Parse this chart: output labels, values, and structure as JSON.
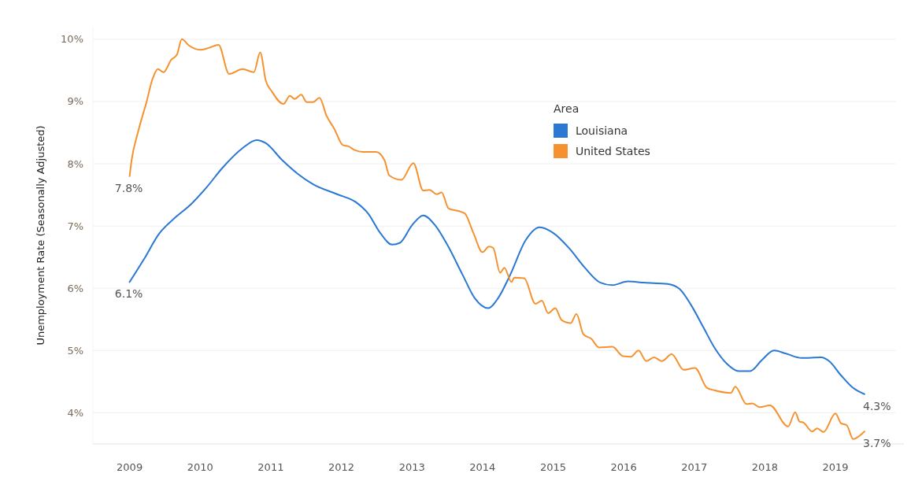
{
  "chart_data": {
    "type": "line",
    "ylabel": "Unemployment Rate (Seasonally Adjusted)",
    "legend_title": "Area",
    "legend": "top right",
    "grid": "y",
    "marker": "none",
    "xlim": [
      2008.48,
      2019.97
    ],
    "xticks": [
      2009,
      2010,
      2011,
      2012,
      2013,
      2014,
      2015,
      2016,
      2017,
      2018,
      2019
    ],
    "ylim": [
      3.5,
      10.2
    ],
    "yticks": [
      {
        "value": 4,
        "label": "4%"
      },
      {
        "value": 5,
        "label": "5%"
      },
      {
        "value": 6,
        "label": "6%"
      },
      {
        "value": 7,
        "label": "7%"
      },
      {
        "value": 8,
        "label": "8%"
      },
      {
        "value": 9,
        "label": "9%"
      },
      {
        "value": 10,
        "label": "10%"
      }
    ],
    "series": [
      {
        "name": "Louisiana",
        "color": "#2a78d3",
        "x": [
          2009.0,
          2009.2,
          2009.42,
          2009.65,
          2009.87,
          2010.09,
          2010.32,
          2010.6,
          2010.8,
          2010.93,
          2011.16,
          2011.38,
          2011.6,
          2011.94,
          2012.21,
          2012.38,
          2012.55,
          2012.72,
          2012.83,
          2013.0,
          2013.16,
          2013.33,
          2013.5,
          2013.72,
          2013.89,
          2014.08,
          2014.22,
          2014.39,
          2014.61,
          2014.81,
          2015.0,
          2015.23,
          2015.45,
          2015.67,
          2015.84,
          2016.06,
          2016.29,
          2016.62,
          2016.79,
          2016.96,
          2017.13,
          2017.29,
          2017.46,
          2017.63,
          2017.79,
          2017.96,
          2018.13,
          2018.3,
          2018.52,
          2018.8,
          2018.91,
          2019.08,
          2019.25,
          2019.41
        ],
        "values": [
          6.1,
          6.46,
          6.88,
          7.14,
          7.35,
          7.62,
          7.94,
          8.25,
          8.38,
          8.33,
          8.06,
          7.84,
          7.67,
          7.51,
          7.38,
          7.2,
          6.89,
          6.7,
          6.73,
          7.01,
          7.17,
          7.01,
          6.7,
          6.21,
          5.84,
          5.68,
          5.84,
          6.21,
          6.77,
          6.98,
          6.89,
          6.64,
          6.33,
          6.09,
          6.05,
          6.11,
          6.09,
          6.07,
          5.99,
          5.72,
          5.37,
          5.04,
          4.79,
          4.67,
          4.67,
          4.85,
          5.0,
          4.95,
          4.88,
          4.89,
          4.83,
          4.6,
          4.4,
          4.3
        ],
        "value_labels": [
          "6.1%",
          null,
          null,
          null,
          null,
          null,
          null,
          null,
          null,
          null,
          null,
          null,
          null,
          null,
          null,
          null,
          null,
          null,
          null,
          null,
          null,
          null,
          null,
          null,
          null,
          null,
          null,
          null,
          null,
          null,
          null,
          null,
          null,
          null,
          null,
          null,
          null,
          null,
          null,
          null,
          null,
          null,
          null,
          null,
          null,
          null,
          null,
          null,
          null,
          null,
          null,
          null,
          null,
          "4.3%"
        ]
      },
      {
        "name": "United States",
        "color": "#f5922f",
        "x": [
          2009.0,
          2009.03,
          2009.11,
          2009.17,
          2009.23,
          2009.33,
          2009.4,
          2009.48,
          2009.59,
          2009.67,
          2009.74,
          2009.84,
          2010.0,
          2010.12,
          2010.26,
          2010.41,
          2010.6,
          2010.76,
          2010.85,
          2010.93,
          2011.01,
          2011.18,
          2011.27,
          2011.34,
          2011.43,
          2011.51,
          2011.6,
          2011.69,
          2011.79,
          2011.9,
          2012.02,
          2012.1,
          2012.19,
          2012.3,
          2012.49,
          2012.61,
          2012.68,
          2012.85,
          2013.02,
          2013.16,
          2013.25,
          2013.35,
          2013.42,
          2013.52,
          2013.69,
          2013.75,
          2013.87,
          2014.0,
          2014.09,
          2014.15,
          2014.25,
          2014.31,
          2014.41,
          2014.45,
          2014.59,
          2014.75,
          2014.84,
          2014.93,
          2015.03,
          2015.12,
          2015.25,
          2015.33,
          2015.43,
          2015.54,
          2015.65,
          2015.84,
          2015.99,
          2016.1,
          2016.21,
          2016.32,
          2016.43,
          2016.54,
          2016.68,
          2016.85,
          2017.01,
          2017.18,
          2017.29,
          2017.52,
          2017.58,
          2017.74,
          2017.82,
          2017.93,
          2018.07,
          2018.33,
          2018.43,
          2018.49,
          2018.55,
          2018.67,
          2018.74,
          2018.83,
          2019.0,
          2019.08,
          2019.16,
          2019.25,
          2019.41
        ],
        "values": [
          7.8,
          8.07,
          8.47,
          8.72,
          8.95,
          9.38,
          9.52,
          9.47,
          9.67,
          9.75,
          10.0,
          9.9,
          9.83,
          9.86,
          9.91,
          9.44,
          9.52,
          9.47,
          9.79,
          9.33,
          9.17,
          8.96,
          9.09,
          9.04,
          9.11,
          8.99,
          8.99,
          9.06,
          8.77,
          8.56,
          8.3,
          8.28,
          8.22,
          8.19,
          8.19,
          8.06,
          7.81,
          7.74,
          8.01,
          7.57,
          7.58,
          7.51,
          7.54,
          7.28,
          7.23,
          7.2,
          6.89,
          6.58,
          6.67,
          6.65,
          6.25,
          6.33,
          6.1,
          6.17,
          6.16,
          5.75,
          5.8,
          5.6,
          5.68,
          5.49,
          5.44,
          5.59,
          5.26,
          5.19,
          5.05,
          5.06,
          4.91,
          4.9,
          5.0,
          4.83,
          4.89,
          4.83,
          4.94,
          4.69,
          4.72,
          4.4,
          4.36,
          4.32,
          4.42,
          4.14,
          4.15,
          4.09,
          4.12,
          3.78,
          4.01,
          3.86,
          3.84,
          3.7,
          3.75,
          3.69,
          3.99,
          3.83,
          3.8,
          3.58,
          3.7
        ],
        "value_labels": [
          "7.8%",
          null,
          null,
          null,
          null,
          null,
          null,
          null,
          null,
          null,
          null,
          null,
          null,
          null,
          null,
          null,
          null,
          null,
          null,
          null,
          null,
          null,
          null,
          null,
          null,
          null,
          null,
          null,
          null,
          null,
          null,
          null,
          null,
          null,
          null,
          null,
          null,
          null,
          null,
          null,
          null,
          null,
          null,
          null,
          null,
          null,
          null,
          null,
          null,
          null,
          null,
          null,
          null,
          null,
          null,
          null,
          null,
          null,
          null,
          null,
          null,
          null,
          null,
          null,
          null,
          null,
          null,
          null,
          null,
          null,
          null,
          null,
          null,
          null,
          null,
          null,
          null,
          null,
          null,
          null,
          null,
          null,
          null,
          null,
          null,
          null,
          null,
          null,
          null,
          null,
          null,
          null,
          null,
          null,
          "3.7%"
        ]
      }
    ]
  }
}
